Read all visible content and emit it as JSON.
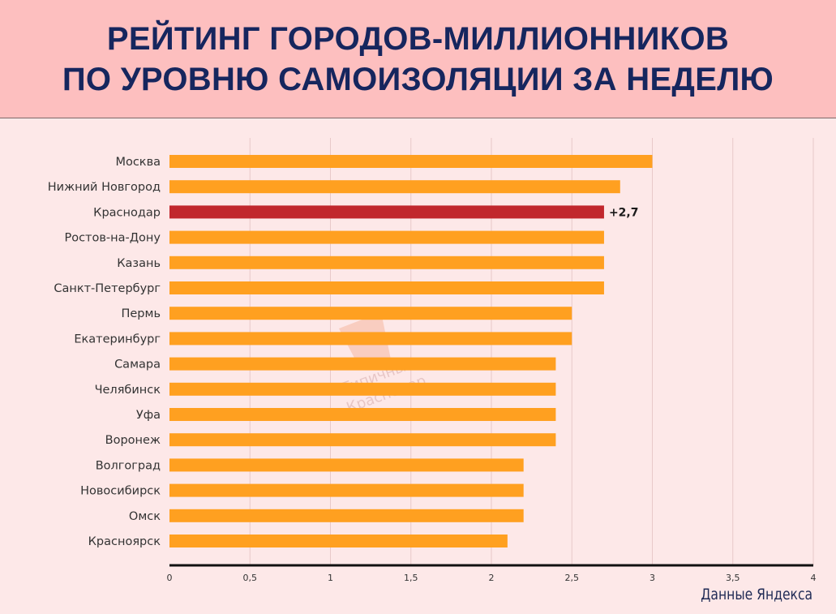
{
  "header": {
    "title_line1": "РЕЙТИНГ ГОРОДОВ-МИЛЛИОННИКОВ",
    "title_line2": "ПО УРОВНЮ САМОИЗОЛЯЦИИ ЗА НЕДЕЛЮ"
  },
  "source": "Данные Яндекса",
  "watermark": {
    "line1": "Типичный",
    "line2": "Краснодар"
  },
  "colors": {
    "bar": "#ffa020",
    "highlight": "#c1272d",
    "grid": "#e8c9c9",
    "axis": "#111111"
  },
  "chart_data": {
    "type": "bar",
    "orientation": "horizontal",
    "categories": [
      "Москва",
      "Нижний Новгород",
      "Краснодар",
      "Ростов-на-Дону",
      "Казань",
      "Санкт-Петербург",
      "Пермь",
      "Екатеринбург",
      "Самара",
      "Челябинск",
      "Уфа",
      "Воронеж",
      "Волгоград",
      "Новосибирск",
      "Омск",
      "Красноярск"
    ],
    "values": [
      3.0,
      2.8,
      2.7,
      2.7,
      2.7,
      2.7,
      2.5,
      2.5,
      2.4,
      2.4,
      2.4,
      2.4,
      2.2,
      2.2,
      2.2,
      2.1
    ],
    "highlight": {
      "category": "Краснодар",
      "label": "+2,7"
    },
    "xlim": [
      0,
      4
    ],
    "xticks": [
      0,
      0.5,
      1,
      1.5,
      2,
      2.5,
      3,
      3.5,
      4
    ],
    "xtick_labels": [
      "0",
      "0,5",
      "1",
      "1,5",
      "2",
      "2,5",
      "3",
      "3,5",
      "4"
    ],
    "grid": true
  }
}
